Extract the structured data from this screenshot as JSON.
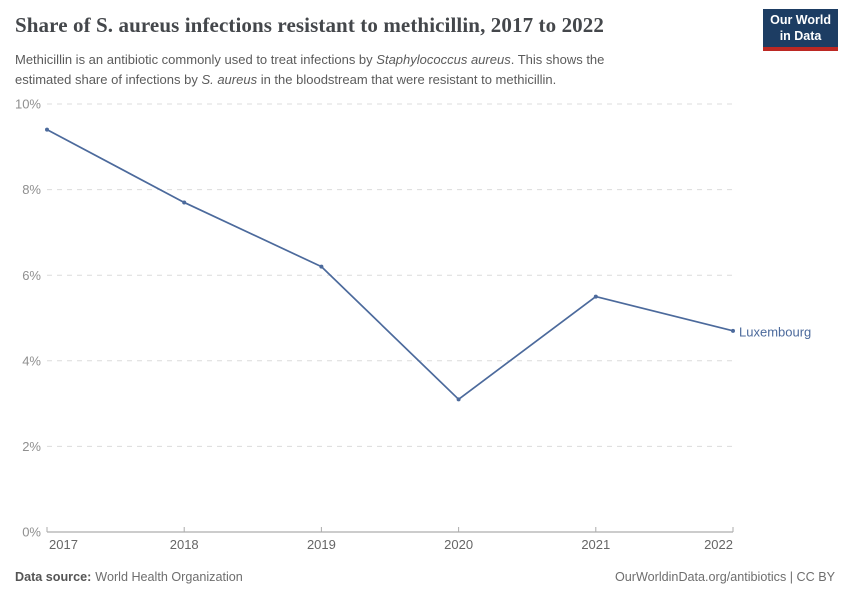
{
  "header": {
    "title": "Share of S. aureus infections resistant to methicillin, 2017 to 2022",
    "subtitle": {
      "l1a": "Methicillin is an antibiotic commonly used to treat infections by ",
      "l1b_italic": "Staphylococcus aureus",
      "l1c": ". This shows the",
      "l2a": "estimated share of infections by ",
      "l2b_italic": "S. aureus",
      "l2c": " in the bloodstream that were resistant to methicillin."
    },
    "logo": {
      "line1": "Our World",
      "line2": "in Data"
    }
  },
  "chart_data": {
    "type": "line",
    "title": "Share of S. aureus infections resistant to methicillin, 2017 to 2022",
    "x": [
      2017,
      2018,
      2019,
      2020,
      2021,
      2022
    ],
    "x_tick_labels": [
      "2017",
      "2018",
      "2019",
      "2020",
      "2021",
      "2022"
    ],
    "series": [
      {
        "name": "Luxembourg",
        "values": [
          9.4,
          7.7,
          6.2,
          3.1,
          5.5,
          4.7
        ],
        "color": "#4c6a9c"
      }
    ],
    "entity_label": "Luxembourg",
    "ylim": [
      0,
      10
    ],
    "y_ticks": [
      0,
      2,
      4,
      6,
      8,
      10
    ],
    "y_tick_suffix": "%",
    "grid": "horizontal-dashed",
    "legend_position": "end-of-line-label"
  },
  "footer": {
    "source_label": "Data source:",
    "source_value": "World Health Organization",
    "license": "OurWorldinData.org/antibiotics | CC BY"
  },
  "colors": {
    "line": "#4c6a9c",
    "entity_label": "#4c6a9c",
    "logo_navy": "#1d3d63",
    "logo_red": "#bc2823",
    "gridline": "#dcdcdc",
    "axis": "#9a9a9a",
    "tick": "#ababab",
    "y_tick_text": "#8f8f8f",
    "x_tick_text": "#666666"
  }
}
